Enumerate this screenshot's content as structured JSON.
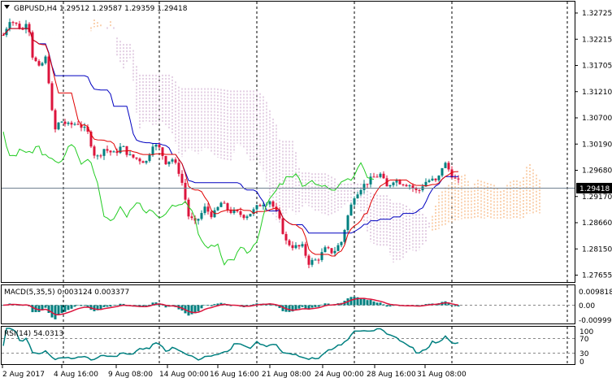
{
  "header": {
    "symbol_line": "GBPUSD,H4  1.29512 1.29587 1.29359 1.29418",
    "menu_icon": "triangle-down-icon"
  },
  "price_axis": {
    "ticks": [
      "1.32725",
      "1.32215",
      "1.31705",
      "1.31210",
      "1.30700",
      "1.30190",
      "1.29680",
      "1.29170",
      "1.28660",
      "1.28150",
      "1.27655"
    ],
    "current_price": "1.29418"
  },
  "macd": {
    "title": "MACD(5,35,5) 0.003124 0.003377",
    "ticks": [
      "0.009818",
      "0.00",
      "-0.009995"
    ]
  },
  "rsi": {
    "title": "RSI(14) 54.0313",
    "ticks": [
      "100",
      "70",
      "30",
      "0"
    ]
  },
  "time_axis": {
    "labels": [
      "2 Aug 2017",
      "4 Aug 16:00",
      "9 Aug 08:00",
      "14 Aug 00:00",
      "16 Aug 16:00",
      "21 Aug 08:00",
      "24 Aug 00:00",
      "28 Aug 16:00",
      "31 Aug 08:00"
    ]
  },
  "colors": {
    "bull": "#008080",
    "bear": "#dc143c",
    "tenkan": "#e00000",
    "kijun": "#0000c0",
    "chikou": "#22cc22",
    "cloud_a": "#f4a460",
    "cloud_b": "#c8a0c8",
    "macd_signal": "#dc143c",
    "rsi_line": "#008080",
    "price_line": "#708090"
  }
}
